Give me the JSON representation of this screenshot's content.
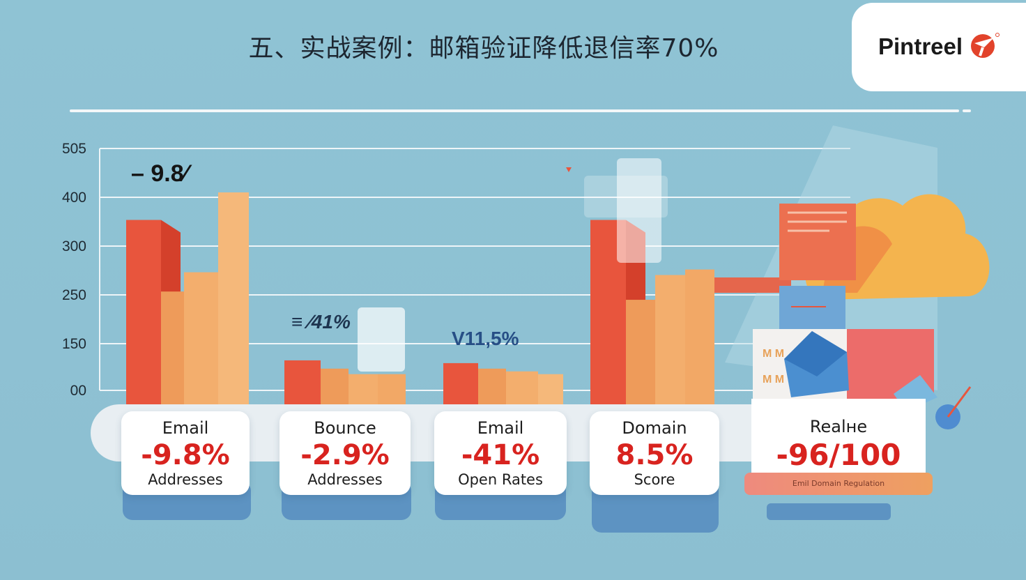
{
  "header": {
    "title": "五、实战案例：邮箱验证降低退信率70%",
    "brand": "Pintreel"
  },
  "chart_data": {
    "type": "bar",
    "y_ticks": [
      "505",
      "400",
      "300",
      "250",
      "150",
      "00"
    ],
    "title": "五、实战案例：邮箱验证降低退信率70%",
    "groups": [
      {
        "label": "Email",
        "value_label": "-9.8%",
        "sublabel": "Addresses",
        "bars": [
          350,
          220,
          255,
          400
        ],
        "annotation": "– 9.8⁄"
      },
      {
        "label": "Bounce",
        "value_label": "-2.9%",
        "sublabel": "Addresses",
        "bars": [
          95,
          80,
          70,
          70
        ],
        "annotation": "≡ ∕41%"
      },
      {
        "label": "Email",
        "value_label": "-41%",
        "sublabel": "Open Rates",
        "bars": [
          90,
          80,
          75,
          70
        ],
        "annotation": "V11,5%"
      },
      {
        "label": "Domain",
        "value_label": "8.5%",
        "sublabel": "Score",
        "bars": [
          350,
          205,
          250,
          260
        ],
        "annotation": ""
      },
      {
        "label": "Realнe",
        "value_label": "-96/100",
        "sublabel": "",
        "bars": [],
        "annotation": ""
      }
    ],
    "ribbon_text": "Emil Domain Regulation",
    "grid": true
  },
  "colors": {
    "bar_red": "#e8553d",
    "bar_orange": "#ee9b5a",
    "bar_light": "#f5b87a",
    "value_red": "#d8231f"
  }
}
